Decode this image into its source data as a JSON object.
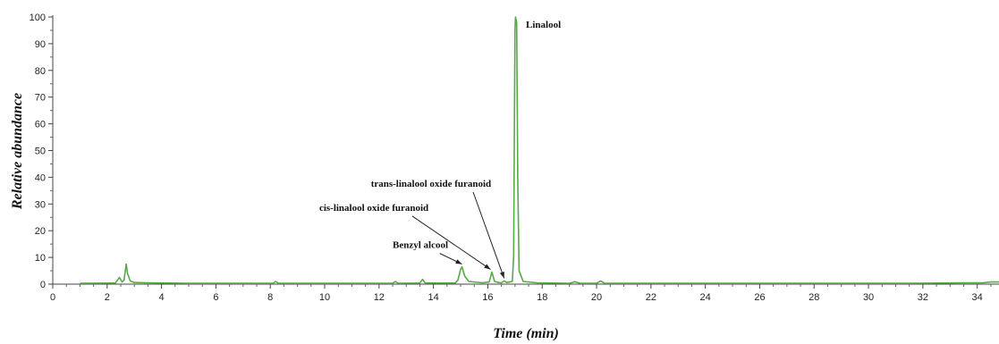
{
  "chart_data": {
    "type": "line",
    "xlabel": "Time (min)",
    "ylabel": "Relative abundance",
    "xlim": [
      0,
      34.8
    ],
    "ylim": [
      0,
      100
    ],
    "x_ticks": [
      0,
      2,
      4,
      6,
      8,
      10,
      12,
      14,
      16,
      18,
      20,
      22,
      24,
      26,
      28,
      30,
      32,
      34
    ],
    "y_ticks": [
      0,
      10,
      20,
      30,
      40,
      50,
      60,
      70,
      80,
      90,
      100
    ],
    "grid": false,
    "line_color": "#5aa84a",
    "series": [
      {
        "points": [
          [
            1.0,
            0.3
          ],
          [
            2.3,
            0.4
          ],
          [
            2.45,
            2.5
          ],
          [
            2.55,
            0.8
          ],
          [
            2.62,
            1.5
          ],
          [
            2.7,
            7.5
          ],
          [
            2.75,
            4.0
          ],
          [
            2.85,
            1.2
          ],
          [
            3.0,
            0.6
          ],
          [
            3.5,
            0.5
          ],
          [
            5.0,
            0.3
          ],
          [
            8.1,
            0.3
          ],
          [
            8.2,
            1.0
          ],
          [
            8.3,
            0.3
          ],
          [
            12.5,
            0.3
          ],
          [
            12.6,
            1.0
          ],
          [
            12.7,
            0.3
          ],
          [
            13.5,
            0.4
          ],
          [
            13.6,
            1.8
          ],
          [
            13.7,
            0.4
          ],
          [
            14.8,
            0.4
          ],
          [
            14.9,
            1.5
          ],
          [
            15.0,
            5.5
          ],
          [
            15.05,
            6.5
          ],
          [
            15.15,
            3.0
          ],
          [
            15.3,
            1.0
          ],
          [
            15.8,
            0.5
          ],
          [
            16.05,
            0.8
          ],
          [
            16.15,
            4.5
          ],
          [
            16.25,
            1.0
          ],
          [
            16.4,
            0.6
          ],
          [
            16.5,
            0.5
          ],
          [
            16.6,
            1.2
          ],
          [
            16.7,
            0.6
          ],
          [
            16.9,
            1.0
          ],
          [
            16.95,
            10.0
          ],
          [
            17.0,
            95.0
          ],
          [
            17.02,
            100.0
          ],
          [
            17.06,
            98.0
          ],
          [
            17.1,
            40.0
          ],
          [
            17.15,
            5.0
          ],
          [
            17.3,
            1.0
          ],
          [
            17.8,
            0.5
          ],
          [
            19.0,
            0.3
          ],
          [
            19.2,
            0.9
          ],
          [
            19.4,
            0.3
          ],
          [
            20.0,
            0.3
          ],
          [
            20.15,
            1.2
          ],
          [
            20.3,
            0.3
          ],
          [
            27.5,
            0.3
          ],
          [
            31.5,
            0.3
          ],
          [
            32.5,
            0.4
          ],
          [
            33.5,
            0.5
          ],
          [
            34.2,
            0.5
          ],
          [
            34.5,
            0.8
          ],
          [
            34.8,
            0.8
          ]
        ]
      }
    ],
    "annotations": [
      {
        "text": "Linalool",
        "text_x": 17.4,
        "text_y": 96,
        "target_x": null,
        "target_y": null
      },
      {
        "text": "trans-linalool oxide furanoid",
        "text_x": 11.7,
        "text_y": 36.5,
        "target_x": 16.6,
        "target_y": 1.2
      },
      {
        "text": "cis-linalool oxide furanoid",
        "text_x": 9.8,
        "text_y": 27.5,
        "target_x": 16.1,
        "target_y": 4.5
      },
      {
        "text": "Benzyl alcool",
        "text_x": 12.5,
        "text_y": 13.5,
        "target_x": 15.05,
        "target_y": 6.5
      }
    ]
  }
}
